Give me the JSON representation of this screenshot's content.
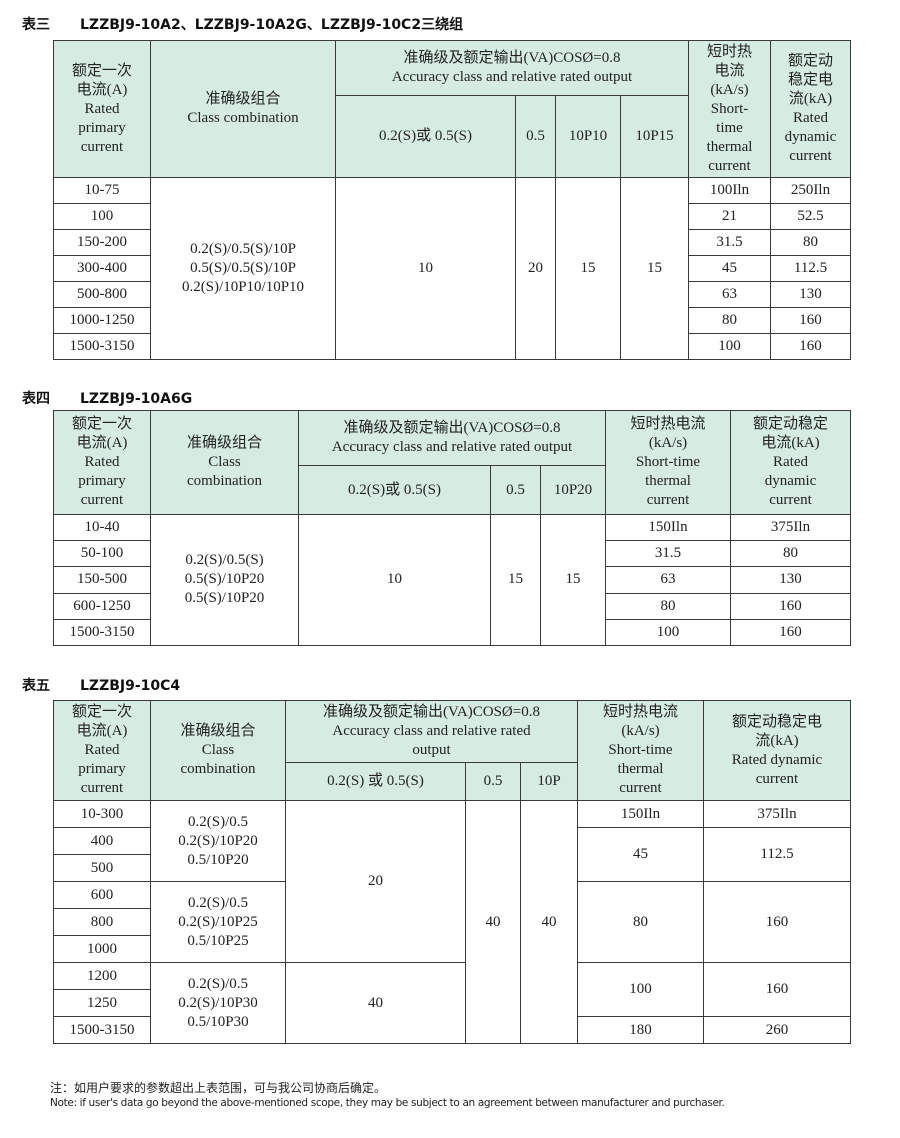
{
  "tables": [
    {
      "label": "表三",
      "model": "LZZBJ9-10A2、LZZBJ9-10A2G、LZZBJ9-10C2三绕组",
      "header": [
        [
          {
            "t": "额定一次\n电流(A)\nRated\nprimary\ncurrent",
            "rs": 2
          },
          {
            "t": "准确级组合\nClass combination",
            "rs": 2
          },
          {
            "t": "准确级及额定输出(VA)COSØ=0.8\nAccuracy class and relative rated output",
            "cs": 4
          },
          {
            "t": "短时热\n电流\n(kA/s)\nShort-\ntime\nthermal\ncurrent",
            "rs": 2
          },
          {
            "t": "额定动\n稳定电\n流(kA)\nRated\ndynamic\ncurrent",
            "rs": 2
          }
        ],
        [
          {
            "t": "0.2(S)或 0.5(S)"
          },
          {
            "t": "0.5"
          },
          {
            "t": "10P10"
          },
          {
            "t": "10P15"
          }
        ]
      ],
      "rows": [
        [
          {
            "t": "10-75"
          },
          {
            "t": "0.2(S)/0.5(S)/10P\n0.5(S)/0.5(S)/10P\n0.2(S)/10P10/10P10",
            "rs": 7
          },
          {
            "t": "10",
            "rs": 7
          },
          {
            "t": "20",
            "rs": 7
          },
          {
            "t": "15",
            "rs": 7
          },
          {
            "t": "15",
            "rs": 7
          },
          {
            "t": "100Iln"
          },
          {
            "t": "250Iln"
          }
        ],
        [
          {
            "t": "100"
          },
          {
            "t": "21"
          },
          {
            "t": "52.5"
          }
        ],
        [
          {
            "t": "150-200"
          },
          {
            "t": "31.5"
          },
          {
            "t": "80"
          }
        ],
        [
          {
            "t": "300-400"
          },
          {
            "t": "45"
          },
          {
            "t": "112.5"
          }
        ],
        [
          {
            "t": "500-800"
          },
          {
            "t": "63"
          },
          {
            "t": "130"
          }
        ],
        [
          {
            "t": "1000-1250"
          },
          {
            "t": "80"
          },
          {
            "t": "160"
          }
        ],
        [
          {
            "t": "1500-3150"
          },
          {
            "t": "100"
          },
          {
            "t": "160"
          }
        ]
      ]
    },
    {
      "label": "表四",
      "model": "LZZBJ9-10A6G",
      "header": [
        [
          {
            "t": "额定一次\n电流(A)\nRated\nprimary\ncurrent",
            "rs": 2
          },
          {
            "t": "准确级组合\nClass\ncombination",
            "rs": 2
          },
          {
            "t": "准确级及额定输出(VA)COSØ=0.8\nAccuracy class and relative rated output",
            "cs": 3
          },
          {
            "t": "短时热电流\n(kA/s)\nShort-time\nthermal\ncurrent",
            "rs": 2
          },
          {
            "t": "额定动稳定\n电流(kA)\nRated\ndynamic\ncurrent",
            "rs": 2
          }
        ],
        [
          {
            "t": "0.2(S)或 0.5(S)"
          },
          {
            "t": "0.5"
          },
          {
            "t": "10P20"
          }
        ]
      ],
      "rows": [
        [
          {
            "t": "10-40"
          },
          {
            "t": "0.2(S)/0.5(S)\n0.5(S)/10P20\n0.5(S)/10P20",
            "rs": 5
          },
          {
            "t": "10",
            "rs": 5
          },
          {
            "t": "15",
            "rs": 5
          },
          {
            "t": "15",
            "rs": 5
          },
          {
            "t": "150Iln"
          },
          {
            "t": "375Iln"
          }
        ],
        [
          {
            "t": "50-100"
          },
          {
            "t": "31.5"
          },
          {
            "t": "80"
          }
        ],
        [
          {
            "t": "150-500"
          },
          {
            "t": "63"
          },
          {
            "t": "130"
          }
        ],
        [
          {
            "t": "600-1250"
          },
          {
            "t": "80"
          },
          {
            "t": "160"
          }
        ],
        [
          {
            "t": "1500-3150"
          },
          {
            "t": "100"
          },
          {
            "t": "160"
          }
        ]
      ]
    },
    {
      "label": "表五",
      "model": "LZZBJ9-10C4",
      "header": [
        [
          {
            "t": "额定一次\n电流(A)\nRated\nprimary\ncurrent",
            "rs": 2
          },
          {
            "t": "准确级组合\nClass\ncombination",
            "rs": 2
          },
          {
            "t": "准确级及额定输出(VA)COSØ=0.8\nAccuracy class and relative rated\noutput",
            "cs": 3
          },
          {
            "t": "短时热电流\n(kA/s)\nShort-time\nthermal\ncurrent",
            "rs": 2
          },
          {
            "t": "额定动稳定电\n流(kA)\nRated dynamic\ncurrent",
            "rs": 2
          }
        ],
        [
          {
            "t": "0.2(S) 或 0.5(S)"
          },
          {
            "t": "0.5"
          },
          {
            "t": "10P"
          }
        ]
      ],
      "rows": [
        [
          {
            "t": "10-300"
          },
          {
            "t": "0.2(S)/0.5\n0.2(S)/10P20\n0.5/10P20",
            "rs": 3
          },
          {
            "t": "20",
            "rs": 6
          },
          {
            "t": "40",
            "rs": 9
          },
          {
            "t": "40",
            "rs": 9
          },
          {
            "t": "150Iln"
          },
          {
            "t": "375Iln"
          }
        ],
        [
          {
            "t": "400"
          },
          {
            "t": "45",
            "rs": 2
          },
          {
            "t": "112.5",
            "rs": 2
          }
        ],
        [
          {
            "t": "500"
          }
        ],
        [
          {
            "t": "600"
          },
          {
            "t": "0.2(S)/0.5\n0.2(S)/10P25\n0.5/10P25",
            "rs": 3
          },
          {
            "t": "80",
            "rs": 3
          },
          {
            "t": "160",
            "rs": 3
          }
        ],
        [
          {
            "t": "800"
          }
        ],
        [
          {
            "t": "1000"
          }
        ],
        [
          {
            "t": "1200"
          },
          {
            "t": "0.2(S)/0.5\n0.2(S)/10P30\n0.5/10P30",
            "rs": 3
          },
          {
            "t": "40",
            "rs": 3
          },
          {
            "t": "100",
            "rs": 2
          },
          {
            "t": "160",
            "rs": 2
          }
        ],
        [
          {
            "t": "1250"
          }
        ],
        [
          {
            "t": "1500-3150"
          },
          {
            "t": "180"
          },
          {
            "t": "260"
          }
        ]
      ]
    }
  ],
  "note": {
    "cn": "注：如用户要求的参数超出上表范围，可与我公司协商后确定。",
    "en": "Note: if user's data go beyond the above-mentioned scope, they may be subject to an agreement between manufacturer and purchaser."
  },
  "colors": {
    "header_bg": "#d6ece3",
    "border": "#3a3a3a"
  }
}
